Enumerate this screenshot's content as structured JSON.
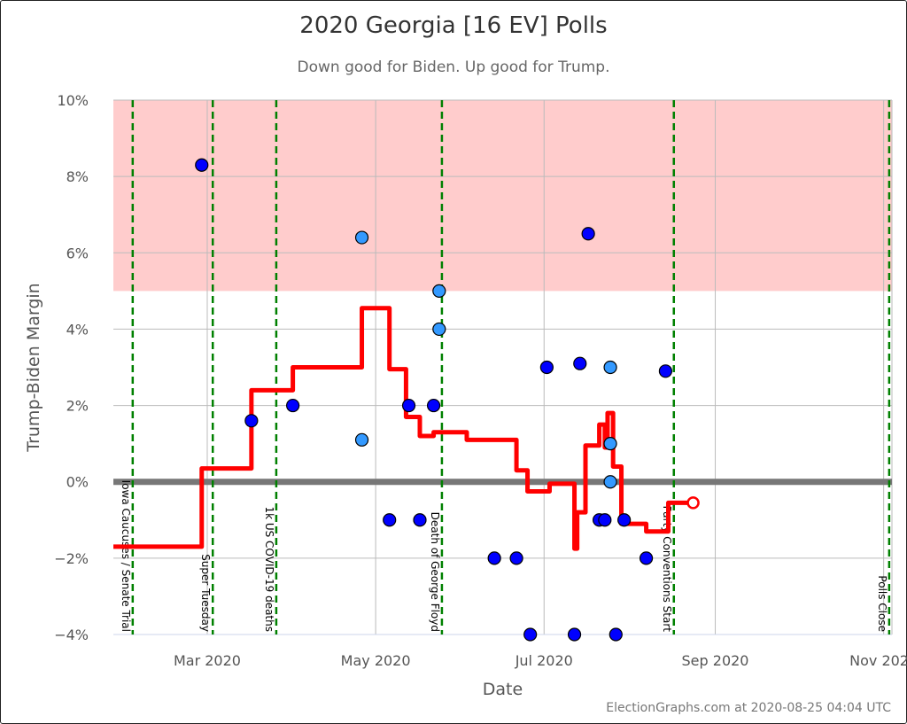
{
  "title": "2020 Georgia [16 EV] Polls",
  "subtitle": "Down good for Biden. Up good for Trump.",
  "credit": "ElectionGraphs.com at 2020-08-25 04:04 UTC",
  "chart_data": {
    "type": "scatter",
    "title": "2020 Georgia [16 EV] Polls",
    "subtitle": "Down good for Biden. Up good for Trump.",
    "xlabel": "Date",
    "ylabel": "Trump-Biden Margin",
    "xlim": [
      "2020-01-27",
      "2020-11-04"
    ],
    "ylim": [
      -4,
      10
    ],
    "grid": true,
    "x_ticks": [
      {
        "date": "2020-03-01",
        "label": "Mar 2020"
      },
      {
        "date": "2020-05-01",
        "label": "May 2020"
      },
      {
        "date": "2020-07-01",
        "label": "Jul 2020"
      },
      {
        "date": "2020-09-01",
        "label": "Sep 2020"
      },
      {
        "date": "2020-11-01",
        "label": "Nov 2020"
      }
    ],
    "y_ticks": [
      {
        "value": -4,
        "label": "−4%"
      },
      {
        "value": -2,
        "label": "−2%"
      },
      {
        "value": 0,
        "label": "0%"
      },
      {
        "value": 2,
        "label": "2%"
      },
      {
        "value": 4,
        "label": "4%"
      },
      {
        "value": 6,
        "label": "6%"
      },
      {
        "value": 8,
        "label": "8%"
      },
      {
        "value": 10,
        "label": "10%"
      }
    ],
    "shaded_band": {
      "from": 5,
      "to": 10,
      "color": "#ffcccc"
    },
    "colors": {
      "poll": "#0000ff",
      "poll_light": "#3399ff",
      "average": "#ff0000",
      "event": "#008000",
      "zero": "#777777"
    },
    "events": [
      {
        "date": "2020-02-03",
        "label": "Iowa Caucuses / Senate Trial"
      },
      {
        "date": "2020-03-03",
        "label": "Super Tuesday"
      },
      {
        "date": "2020-03-26",
        "label": "1k US COVID-19 deaths"
      },
      {
        "date": "2020-05-25",
        "label": "Death of George Floyd"
      },
      {
        "date": "2020-08-17",
        "label": "Party Conventions Start"
      },
      {
        "date": "2020-11-03",
        "label": "Polls Close"
      }
    ],
    "polls": [
      {
        "date": "2020-02-28",
        "margin": 8.3,
        "light": false
      },
      {
        "date": "2020-03-17",
        "margin": 1.6,
        "light": false
      },
      {
        "date": "2020-04-01",
        "margin": 2.0,
        "light": false
      },
      {
        "date": "2020-04-26",
        "margin": 6.4,
        "light": true
      },
      {
        "date": "2020-04-26",
        "margin": 1.1,
        "light": true
      },
      {
        "date": "2020-05-06",
        "margin": -1.0,
        "light": false
      },
      {
        "date": "2020-05-13",
        "margin": 2.0,
        "light": false
      },
      {
        "date": "2020-05-17",
        "margin": -1.0,
        "light": false
      },
      {
        "date": "2020-05-22",
        "margin": 2.0,
        "light": false
      },
      {
        "date": "2020-05-24",
        "margin": 5.0,
        "light": true
      },
      {
        "date": "2020-05-24",
        "margin": 4.0,
        "light": true
      },
      {
        "date": "2020-06-13",
        "margin": -2.0,
        "light": false
      },
      {
        "date": "2020-06-21",
        "margin": -2.0,
        "light": false
      },
      {
        "date": "2020-06-26",
        "margin": -4.0,
        "light": false
      },
      {
        "date": "2020-07-02",
        "margin": 3.0,
        "light": false
      },
      {
        "date": "2020-07-12",
        "margin": -4.0,
        "light": false
      },
      {
        "date": "2020-07-14",
        "margin": 3.1,
        "light": false
      },
      {
        "date": "2020-07-17",
        "margin": 6.5,
        "light": false
      },
      {
        "date": "2020-07-21",
        "margin": -1.0,
        "light": false
      },
      {
        "date": "2020-07-23",
        "margin": -1.0,
        "light": false
      },
      {
        "date": "2020-07-25",
        "margin": 3.0,
        "light": true
      },
      {
        "date": "2020-07-25",
        "margin": 1.0,
        "light": true
      },
      {
        "date": "2020-07-25",
        "margin": 0.0,
        "light": true
      },
      {
        "date": "2020-07-27",
        "margin": -4.0,
        "light": false
      },
      {
        "date": "2020-07-30",
        "margin": -1.0,
        "light": false
      },
      {
        "date": "2020-08-07",
        "margin": -2.0,
        "light": false
      },
      {
        "date": "2020-08-14",
        "margin": 2.9,
        "light": false
      }
    ],
    "average_steps": [
      {
        "date": "2020-01-27",
        "margin": -1.7
      },
      {
        "date": "2020-02-28",
        "margin": 0.35
      },
      {
        "date": "2020-03-17",
        "margin": 2.4
      },
      {
        "date": "2020-04-01",
        "margin": 3.0
      },
      {
        "date": "2020-04-26",
        "margin": 4.55
      },
      {
        "date": "2020-05-06",
        "margin": 2.95
      },
      {
        "date": "2020-05-12",
        "margin": 1.7
      },
      {
        "date": "2020-05-17",
        "margin": 1.2
      },
      {
        "date": "2020-05-22",
        "margin": 1.3
      },
      {
        "date": "2020-06-03",
        "margin": 1.1
      },
      {
        "date": "2020-06-21",
        "margin": 0.3
      },
      {
        "date": "2020-06-25",
        "margin": -0.25
      },
      {
        "date": "2020-07-03",
        "margin": -0.05
      },
      {
        "date": "2020-07-12",
        "margin": -1.75
      },
      {
        "date": "2020-07-13",
        "margin": -0.8
      },
      {
        "date": "2020-07-16",
        "margin": 0.95
      },
      {
        "date": "2020-07-21",
        "margin": 1.5
      },
      {
        "date": "2020-07-23",
        "margin": 0.9
      },
      {
        "date": "2020-07-24",
        "margin": 1.8
      },
      {
        "date": "2020-07-26",
        "margin": 0.4
      },
      {
        "date": "2020-07-29",
        "margin": -1.1
      },
      {
        "date": "2020-08-07",
        "margin": -1.3
      },
      {
        "date": "2020-08-15",
        "margin": -0.55
      },
      {
        "date": "2020-08-24",
        "margin": -0.55
      }
    ]
  }
}
